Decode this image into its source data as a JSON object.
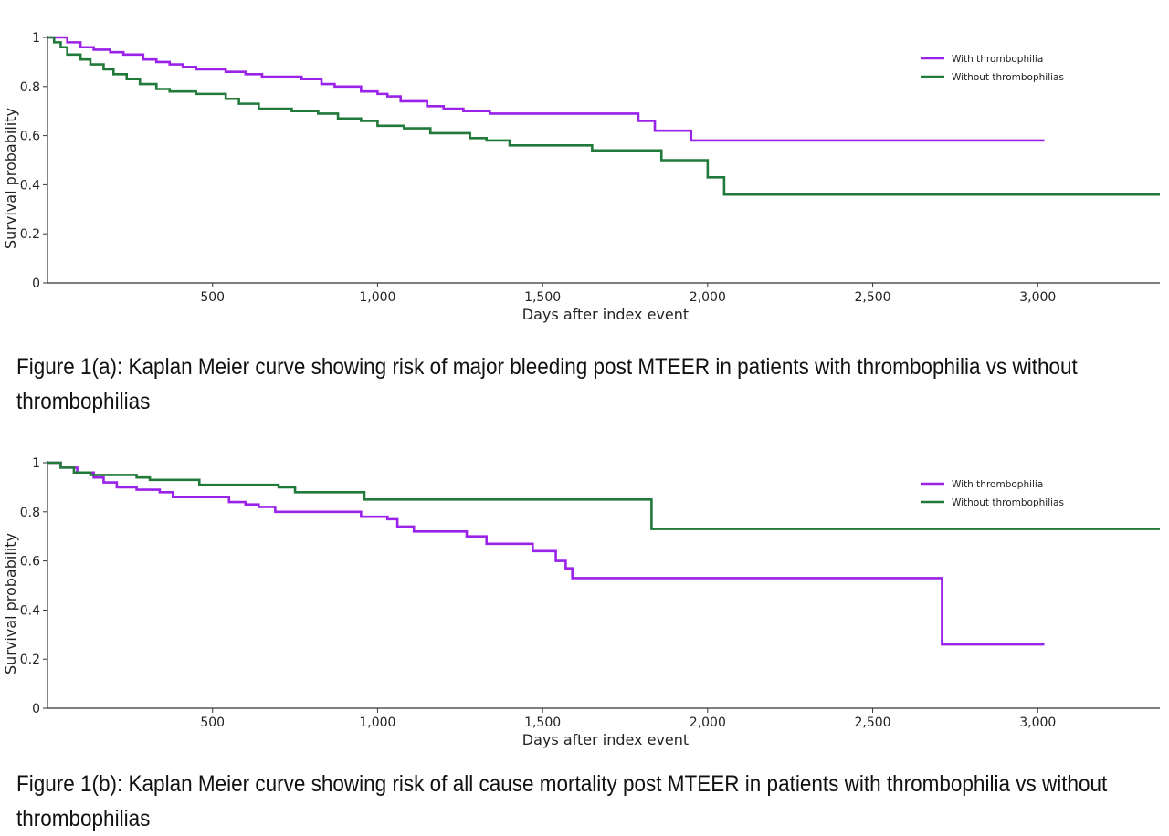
{
  "chart_data": [
    {
      "type": "line",
      "step": true,
      "title": "",
      "xlabel": "Days after index event",
      "ylabel": "Survival probability",
      "xlim": [
        0,
        3370
      ],
      "ylim": [
        0,
        1
      ],
      "xticks": [
        500,
        1000,
        1500,
        2000,
        2500,
        3000
      ],
      "xtick_labels": [
        "500",
        "1,000",
        "1,500",
        "2,000",
        "2,500",
        "3,000"
      ],
      "yticks": [
        0,
        0.2,
        0.4,
        0.6,
        0.8,
        1
      ],
      "ytick_labels": [
        "0",
        "0.2",
        "0.4",
        "0.6",
        "0.8",
        "1"
      ],
      "legend_position": "top-right",
      "series": [
        {
          "name": "With thrombophilia",
          "color": "#9b22e8",
          "x": [
            0,
            60,
            100,
            140,
            190,
            230,
            290,
            330,
            370,
            410,
            450,
            540,
            600,
            650,
            770,
            830,
            870,
            950,
            1000,
            1030,
            1070,
            1150,
            1200,
            1260,
            1340,
            1790,
            1840,
            1950,
            3020
          ],
          "y": [
            1,
            0.98,
            0.96,
            0.95,
            0.94,
            0.93,
            0.91,
            0.9,
            0.89,
            0.88,
            0.87,
            0.86,
            0.85,
            0.84,
            0.83,
            0.81,
            0.8,
            0.78,
            0.77,
            0.76,
            0.74,
            0.72,
            0.71,
            0.7,
            0.69,
            0.66,
            0.62,
            0.58,
            0.58
          ]
        },
        {
          "name": "Without thrombophilias",
          "color": "#217a3a",
          "x": [
            0,
            20,
            40,
            60,
            100,
            130,
            170,
            200,
            240,
            280,
            330,
            370,
            450,
            540,
            580,
            640,
            740,
            820,
            880,
            950,
            1000,
            1080,
            1160,
            1280,
            1330,
            1400,
            1650,
            1860,
            2000,
            2050,
            3370
          ],
          "y": [
            1,
            0.98,
            0.96,
            0.93,
            0.91,
            0.89,
            0.87,
            0.85,
            0.83,
            0.81,
            0.79,
            0.78,
            0.77,
            0.75,
            0.73,
            0.71,
            0.7,
            0.69,
            0.67,
            0.66,
            0.64,
            0.63,
            0.61,
            0.59,
            0.58,
            0.56,
            0.54,
            0.5,
            0.43,
            0.36,
            0.36
          ]
        }
      ]
    },
    {
      "type": "line",
      "step": true,
      "title": "",
      "xlabel": "Days after index event",
      "ylabel": "Survival probability",
      "xlim": [
        0,
        3370
      ],
      "ylim": [
        0,
        1
      ],
      "xticks": [
        500,
        1000,
        1500,
        2000,
        2500,
        3000
      ],
      "xtick_labels": [
        "500",
        "1,000",
        "1,500",
        "2,000",
        "2,500",
        "3,000"
      ],
      "yticks": [
        0,
        0.2,
        0.4,
        0.6,
        0.8,
        1
      ],
      "ytick_labels": [
        "0",
        "0.2",
        "0.4",
        "0.6",
        "0.8",
        "1"
      ],
      "legend_position": "top-right",
      "series": [
        {
          "name": "With thrombophilia",
          "color": "#9b22e8",
          "x": [
            0,
            40,
            90,
            140,
            170,
            210,
            270,
            340,
            380,
            460,
            550,
            600,
            640,
            690,
            950,
            1030,
            1060,
            1110,
            1270,
            1330,
            1470,
            1540,
            1570,
            1590,
            2710,
            3020
          ],
          "y": [
            1,
            0.98,
            0.96,
            0.94,
            0.92,
            0.9,
            0.89,
            0.88,
            0.86,
            0.86,
            0.84,
            0.83,
            0.82,
            0.8,
            0.78,
            0.77,
            0.74,
            0.72,
            0.7,
            0.67,
            0.64,
            0.6,
            0.57,
            0.53,
            0.26,
            0.26
          ]
        },
        {
          "name": "Without thrombophilias",
          "color": "#217a3a",
          "x": [
            0,
            40,
            80,
            130,
            270,
            310,
            460,
            700,
            750,
            960,
            1830,
            3370
          ],
          "y": [
            1,
            0.98,
            0.96,
            0.95,
            0.94,
            0.93,
            0.91,
            0.9,
            0.88,
            0.85,
            0.73,
            0.73
          ]
        }
      ]
    }
  ],
  "captions": {
    "a": "Figure 1(a): Kaplan Meier curve showing risk of major bleeding post MTEER in patients with thrombophilia vs without thrombophilias",
    "b": "Figure 1(b): Kaplan Meier curve showing risk of all cause mortality post MTEER in patients with thrombophilia vs without thrombophilias"
  }
}
